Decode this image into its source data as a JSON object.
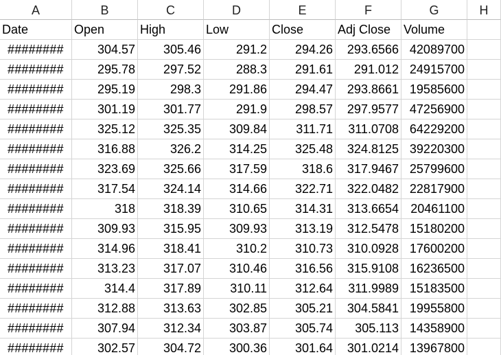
{
  "columns": [
    "A",
    "B",
    "C",
    "D",
    "E",
    "F",
    "G",
    "H"
  ],
  "headers": [
    "Date",
    "Open",
    "High",
    "Low",
    "Close",
    "Adj Close",
    "Volume"
  ],
  "rows": [
    [
      "########",
      "304.57",
      "305.46",
      "291.2",
      "294.26",
      "293.6566",
      "42089700"
    ],
    [
      "########",
      "295.78",
      "297.52",
      "288.3",
      "291.61",
      "291.012",
      "24915700"
    ],
    [
      "########",
      "295.19",
      "298.3",
      "291.86",
      "294.47",
      "293.8661",
      "19585600"
    ],
    [
      "########",
      "301.19",
      "301.77",
      "291.9",
      "298.57",
      "297.9577",
      "47256900"
    ],
    [
      "########",
      "325.12",
      "325.35",
      "309.84",
      "311.71",
      "311.0708",
      "64229200"
    ],
    [
      "########",
      "316.88",
      "326.2",
      "314.25",
      "325.48",
      "324.8125",
      "39220300"
    ],
    [
      "########",
      "323.69",
      "325.66",
      "317.59",
      "318.6",
      "317.9467",
      "25799600"
    ],
    [
      "########",
      "317.54",
      "324.14",
      "314.66",
      "322.71",
      "322.0482",
      "22817900"
    ],
    [
      "########",
      "318",
      "318.39",
      "310.65",
      "314.31",
      "313.6654",
      "20461100"
    ],
    [
      "########",
      "309.93",
      "315.95",
      "309.93",
      "313.19",
      "312.5478",
      "15180200"
    ],
    [
      "########",
      "314.96",
      "318.41",
      "310.2",
      "310.73",
      "310.0928",
      "17600200"
    ],
    [
      "########",
      "313.23",
      "317.07",
      "310.46",
      "316.56",
      "315.9108",
      "16236500"
    ],
    [
      "########",
      "314.4",
      "317.89",
      "310.11",
      "312.64",
      "311.9989",
      "15183500"
    ],
    [
      "########",
      "312.88",
      "313.63",
      "302.85",
      "305.21",
      "304.5841",
      "19955800"
    ],
    [
      "########",
      "307.94",
      "312.34",
      "303.87",
      "305.74",
      "305.113",
      "14358900"
    ],
    [
      "########",
      "302.57",
      "304.72",
      "300.36",
      "301.64",
      "301.0214",
      "13967800"
    ]
  ],
  "colors": {
    "gridline": "#d4d4d4",
    "header_text": "#222222",
    "cell_text": "#000000",
    "background": "#ffffff"
  }
}
